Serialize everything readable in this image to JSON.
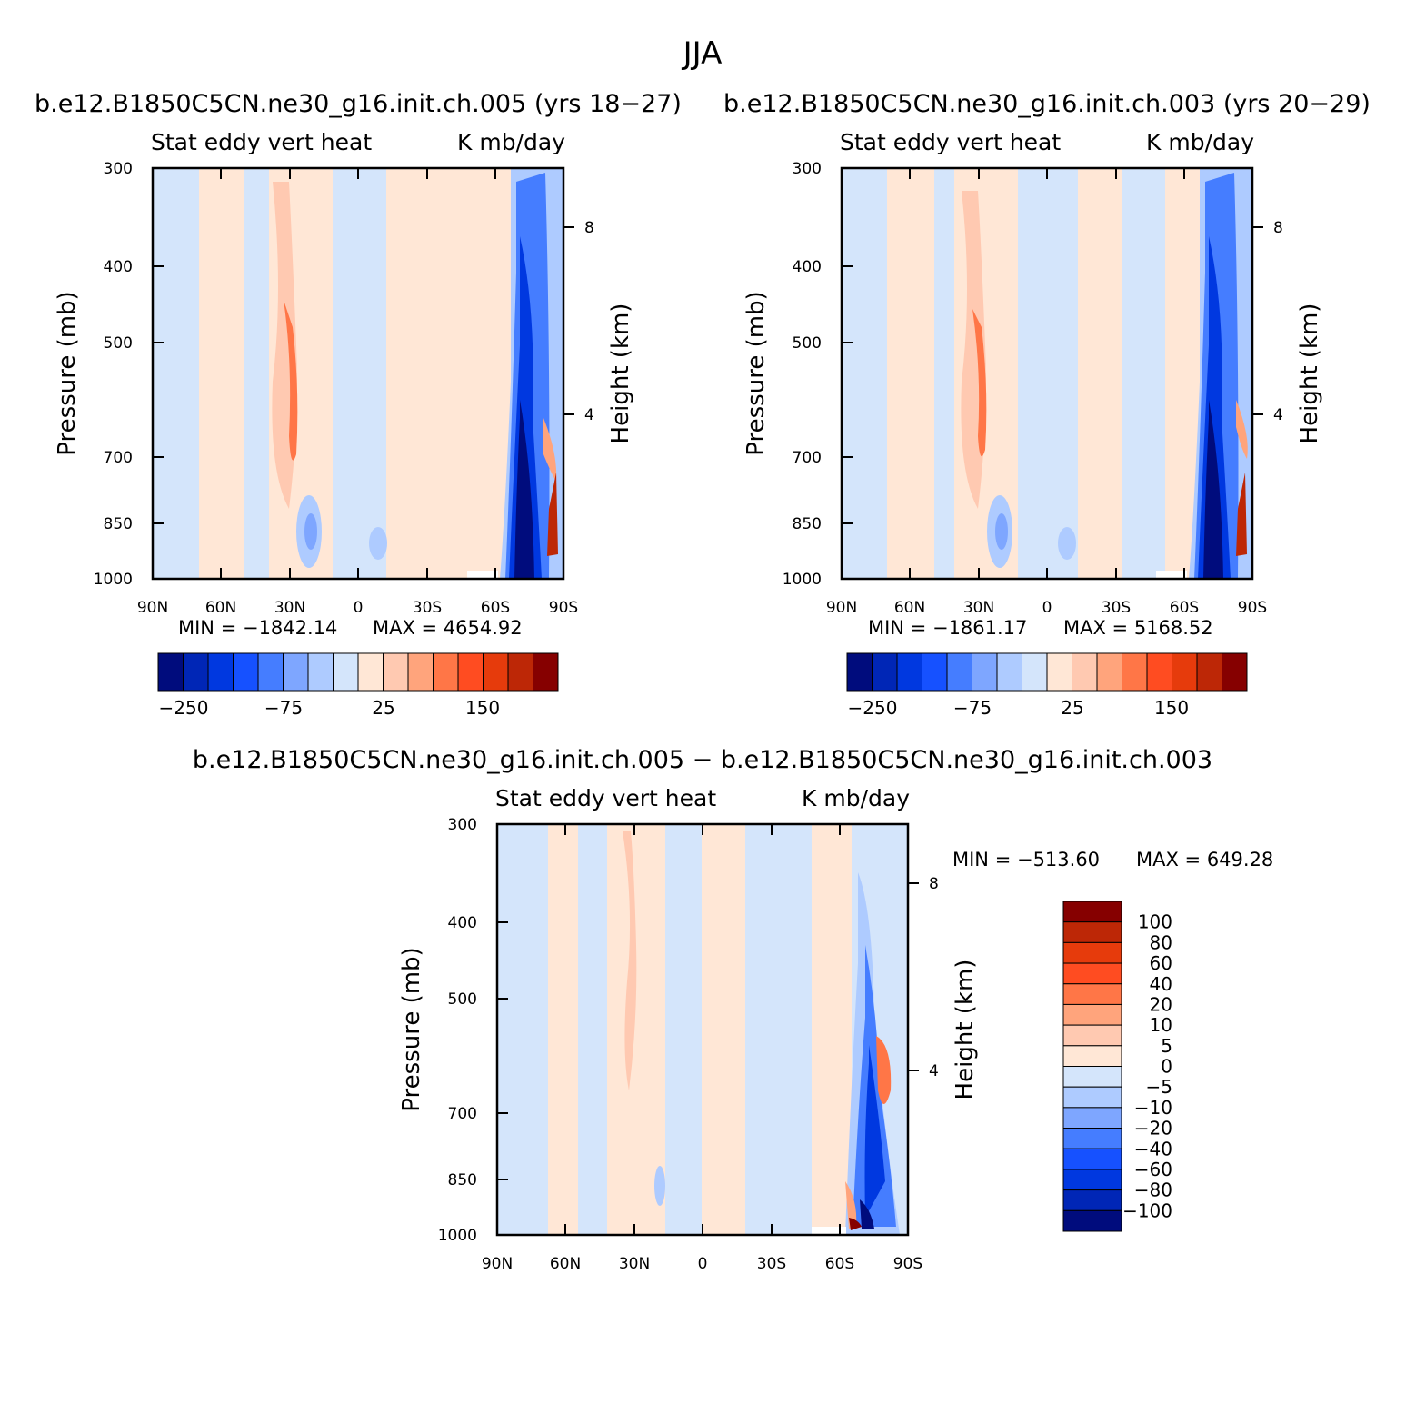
{
  "suptitle": "JJA",
  "colors": {
    "neg": [
      "#000c7d",
      "#0026b6",
      "#0038e0",
      "#1651ff",
      "#457dff",
      "#7ea6ff",
      "#aecbff",
      "#d4e5fb"
    ],
    "pos": [
      "#ffe7d6",
      "#ffc9b1",
      "#ffa47c",
      "#ff7647",
      "#ff4c21",
      "#e63b0c",
      "#bd2706",
      "#860000"
    ]
  },
  "chart_data": [
    {
      "type": "heatmap",
      "title": "b.e12.B1850C5CN.ne30_g16.init.ch.005 (yrs 18-27)",
      "left_label": "Stat eddy vert heat",
      "right_label": "K mb/day",
      "xlabel": "",
      "ylabel": "Pressure (mb)",
      "y2label": "Height (km)",
      "x_ticks": [
        "90N",
        "60N",
        "30N",
        "0",
        "30S",
        "60S",
        "90S"
      ],
      "y_ticks": [
        "300",
        "400",
        "500",
        "700",
        "850",
        "1000"
      ],
      "y2_ticks": [
        "8",
        "4"
      ],
      "xlim": [
        90,
        -90
      ],
      "ylim": [
        1000,
        300
      ],
      "log_pressure": true,
      "min_text": "MIN = -1842.14",
      "max_text": "MAX = 4654.92",
      "colorbar": {
        "orientation": "horizontal",
        "labels": [
          "-250",
          "-75",
          "25",
          "150"
        ]
      }
    },
    {
      "type": "heatmap",
      "title": "b.e12.B1850C5CN.ne30_g16.init.ch.003 (yrs 20-29)",
      "left_label": "Stat eddy vert heat",
      "right_label": "K mb/day",
      "xlabel": "",
      "ylabel": "Pressure (mb)",
      "y2label": "Height (km)",
      "x_ticks": [
        "90N",
        "60N",
        "30N",
        "0",
        "30S",
        "60S",
        "90S"
      ],
      "y_ticks": [
        "300",
        "400",
        "500",
        "700",
        "850",
        "1000"
      ],
      "y2_ticks": [
        "8",
        "4"
      ],
      "xlim": [
        90,
        -90
      ],
      "ylim": [
        1000,
        300
      ],
      "log_pressure": true,
      "min_text": "MIN = -1861.17",
      "max_text": "MAX = 5168.52",
      "colorbar": {
        "orientation": "horizontal",
        "labels": [
          "-250",
          "-75",
          "25",
          "150"
        ]
      }
    },
    {
      "type": "heatmap",
      "title": "b.e12.B1850C5CN.ne30_g16.init.ch.005 - b.e12.B1850C5CN.ne30_g16.init.ch.003",
      "left_label": "Stat eddy vert heat",
      "right_label": "K mb/day",
      "xlabel": "",
      "ylabel": "Pressure (mb)",
      "y2label": "Height (km)",
      "x_ticks": [
        "90N",
        "60N",
        "30N",
        "0",
        "30S",
        "60S",
        "90S"
      ],
      "y_ticks": [
        "300",
        "400",
        "500",
        "700",
        "850",
        "1000"
      ],
      "y2_ticks": [
        "8",
        "4"
      ],
      "xlim": [
        90,
        -90
      ],
      "ylim": [
        1000,
        300
      ],
      "log_pressure": true,
      "min_text": "MIN = -513.60",
      "max_text": "MAX = 649.28",
      "colorbar": {
        "orientation": "vertical",
        "labels": [
          "100",
          "80",
          "60",
          "40",
          "20",
          "10",
          "5",
          "0",
          "-5",
          "-10",
          "-20",
          "-40",
          "-60",
          "-80",
          "-100"
        ]
      }
    }
  ]
}
